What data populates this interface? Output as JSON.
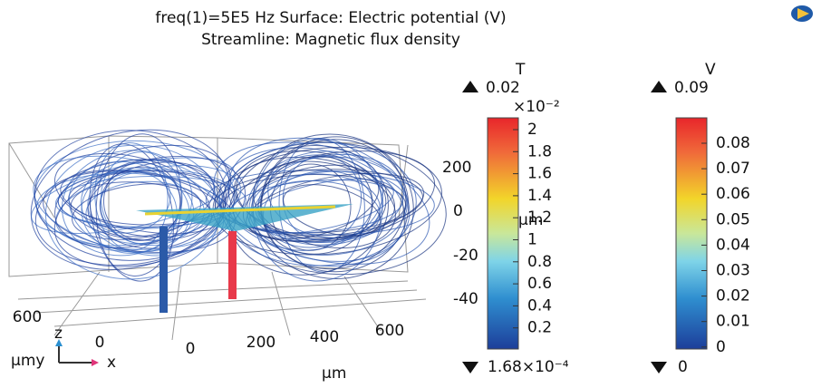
{
  "header": {
    "line1": "freq(1)=5E5 Hz   Surface: Electric potential (V)",
    "line2": "Streamline: Magnetic flux density"
  },
  "colorbars": [
    {
      "unit": "T",
      "max": "0.02",
      "exponent": "×10⁻²",
      "ticks": [
        "2",
        "1.8",
        "1.6",
        "1.4",
        "1.2",
        "1",
        "0.8",
        "0.6",
        "0.4",
        "0.2"
      ],
      "min": "1.68×10⁻⁴"
    },
    {
      "unit": "V",
      "max": "0.09",
      "ticks": [
        "0.08",
        "0.07",
        "0.06",
        "0.05",
        "0.04",
        "0.03",
        "0.02",
        "0.01",
        "0"
      ],
      "min": "0"
    }
  ],
  "axes": {
    "x_ticks": [
      "0",
      "200",
      "400",
      "600"
    ],
    "y_ticks": [
      "600",
      "0"
    ],
    "z_ticks": [
      "200",
      "0",
      "-20",
      "-40"
    ],
    "x_unit": "µm",
    "z_unit": "µm",
    "y_unit": "µmy",
    "triad": {
      "z": "z",
      "x": "x"
    }
  }
}
